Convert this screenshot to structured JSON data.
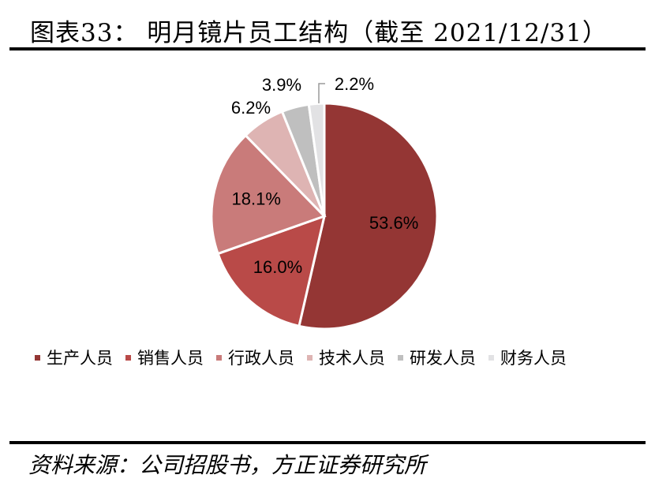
{
  "header": {
    "title": "图表33：  明月镜片员工结构（截至 2021/12/31）"
  },
  "footer": {
    "source": "资料来源：公司招股书，方正证券研究所"
  },
  "colors": [
    "#943634",
    "#b94a48",
    "#c97b7a",
    "#deb4b3",
    "#bfbfbf",
    "#e2e2e4"
  ],
  "chart_data": {
    "type": "pie",
    "categories": [
      "生产人员",
      "销售人员",
      "行政人员",
      "技术人员",
      "研发人员",
      "财务人员"
    ],
    "values": [
      53.6,
      16.0,
      18.1,
      6.2,
      3.9,
      2.2
    ],
    "labels": [
      "53.6%",
      "16.0%",
      "18.1%",
      "6.2%",
      "3.9%",
      "2.2%"
    ],
    "legend_position": "bottom"
  }
}
